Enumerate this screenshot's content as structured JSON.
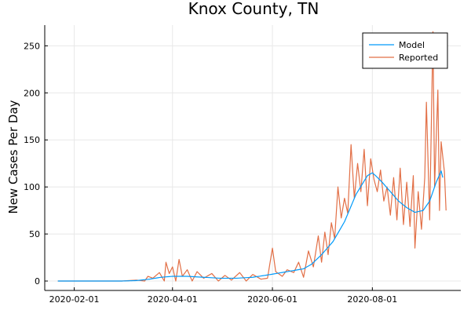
{
  "chart_data": {
    "type": "line",
    "title": "Knox County, TN",
    "xlabel": "",
    "ylabel": "New Cases Per Day",
    "x_range": [
      "2020-01-22",
      "2020-09-15"
    ],
    "x_axis": [
      "2020-01-14",
      "2020-09-24"
    ],
    "x_ticks": [
      "2020-02-01",
      "2020-04-01",
      "2020-06-01",
      "2020-08-01"
    ],
    "ylim": [
      -10,
      272
    ],
    "y_ticks": [
      0,
      50,
      100,
      150,
      200,
      250
    ],
    "grid": true,
    "legend_position": "top-right",
    "colors": {
      "model": "#009AFA",
      "reported": "#E26F46"
    },
    "series": [
      {
        "name": "Model",
        "anchors": [
          [
            "2020-01-22",
            0
          ],
          [
            "2020-03-01",
            0
          ],
          [
            "2020-03-10",
            0.5
          ],
          [
            "2020-03-18",
            2
          ],
          [
            "2020-03-25",
            4
          ],
          [
            "2020-04-01",
            5
          ],
          [
            "2020-04-10",
            5
          ],
          [
            "2020-04-20",
            4
          ],
          [
            "2020-04-30",
            3
          ],
          [
            "2020-05-10",
            3
          ],
          [
            "2020-05-20",
            4
          ],
          [
            "2020-05-31",
            7
          ],
          [
            "2020-06-10",
            10
          ],
          [
            "2020-06-20",
            13
          ],
          [
            "2020-06-25",
            18
          ],
          [
            "2020-07-01",
            28
          ],
          [
            "2020-07-08",
            42
          ],
          [
            "2020-07-15",
            63
          ],
          [
            "2020-07-22",
            92
          ],
          [
            "2020-07-29",
            112
          ],
          [
            "2020-08-01",
            115
          ],
          [
            "2020-08-03",
            112
          ],
          [
            "2020-08-07",
            105
          ],
          [
            "2020-08-12",
            95
          ],
          [
            "2020-08-17",
            85
          ],
          [
            "2020-08-22",
            78
          ],
          [
            "2020-08-27",
            73
          ],
          [
            "2020-09-01",
            75
          ],
          [
            "2020-09-05",
            85
          ],
          [
            "2020-09-09",
            105
          ],
          [
            "2020-09-12",
            117
          ],
          [
            "2020-09-13",
            110
          ]
        ]
      },
      {
        "name": "Reported",
        "anchors": [
          [
            "2020-01-22",
            0
          ],
          [
            "2020-03-01",
            0
          ],
          [
            "2020-03-10",
            1
          ],
          [
            "2020-03-15",
            0
          ],
          [
            "2020-03-17",
            5
          ],
          [
            "2020-03-20",
            3
          ],
          [
            "2020-03-24",
            9
          ],
          [
            "2020-03-27",
            0
          ],
          [
            "2020-03-28",
            20
          ],
          [
            "2020-03-30",
            8
          ],
          [
            "2020-04-01",
            15
          ],
          [
            "2020-04-03",
            0
          ],
          [
            "2020-04-05",
            23
          ],
          [
            "2020-04-07",
            5
          ],
          [
            "2020-04-10",
            12
          ],
          [
            "2020-04-13",
            0
          ],
          [
            "2020-04-16",
            10
          ],
          [
            "2020-04-20",
            3
          ],
          [
            "2020-04-25",
            8
          ],
          [
            "2020-04-29",
            0
          ],
          [
            "2020-05-03",
            6
          ],
          [
            "2020-05-07",
            1
          ],
          [
            "2020-05-12",
            9
          ],
          [
            "2020-05-16",
            0
          ],
          [
            "2020-05-20",
            7
          ],
          [
            "2020-05-25",
            2
          ],
          [
            "2020-05-29",
            3
          ],
          [
            "2020-06-01",
            35
          ],
          [
            "2020-06-03",
            10
          ],
          [
            "2020-06-07",
            5
          ],
          [
            "2020-06-10",
            12
          ],
          [
            "2020-06-14",
            9
          ],
          [
            "2020-06-17",
            20
          ],
          [
            "2020-06-20",
            4
          ],
          [
            "2020-06-23",
            32
          ],
          [
            "2020-06-26",
            15
          ],
          [
            "2020-06-29",
            48
          ],
          [
            "2020-07-01",
            20
          ],
          [
            "2020-07-03",
            52
          ],
          [
            "2020-07-05",
            28
          ],
          [
            "2020-07-07",
            62
          ],
          [
            "2020-07-09",
            45
          ],
          [
            "2020-07-11",
            100
          ],
          [
            "2020-07-13",
            67
          ],
          [
            "2020-07-15",
            88
          ],
          [
            "2020-07-17",
            72
          ],
          [
            "2020-07-19",
            145
          ],
          [
            "2020-07-21",
            88
          ],
          [
            "2020-07-23",
            125
          ],
          [
            "2020-07-25",
            95
          ],
          [
            "2020-07-27",
            140
          ],
          [
            "2020-07-29",
            80
          ],
          [
            "2020-07-31",
            130
          ],
          [
            "2020-08-02",
            108
          ],
          [
            "2020-08-04",
            95
          ],
          [
            "2020-08-06",
            118
          ],
          [
            "2020-08-08",
            85
          ],
          [
            "2020-08-10",
            100
          ],
          [
            "2020-08-12",
            70
          ],
          [
            "2020-08-14",
            110
          ],
          [
            "2020-08-16",
            65
          ],
          [
            "2020-08-18",
            120
          ],
          [
            "2020-08-20",
            60
          ],
          [
            "2020-08-22",
            105
          ],
          [
            "2020-08-24",
            58
          ],
          [
            "2020-08-26",
            112
          ],
          [
            "2020-08-27",
            35
          ],
          [
            "2020-08-29",
            95
          ],
          [
            "2020-08-31",
            55
          ],
          [
            "2020-09-02",
            110
          ],
          [
            "2020-09-03",
            190
          ],
          [
            "2020-09-05",
            65
          ],
          [
            "2020-09-07",
            265
          ],
          [
            "2020-09-08",
            100
          ],
          [
            "2020-09-10",
            203
          ],
          [
            "2020-09-11",
            75
          ],
          [
            "2020-09-12",
            148
          ],
          [
            "2020-09-14",
            116
          ],
          [
            "2020-09-15",
            75
          ]
        ]
      }
    ]
  }
}
